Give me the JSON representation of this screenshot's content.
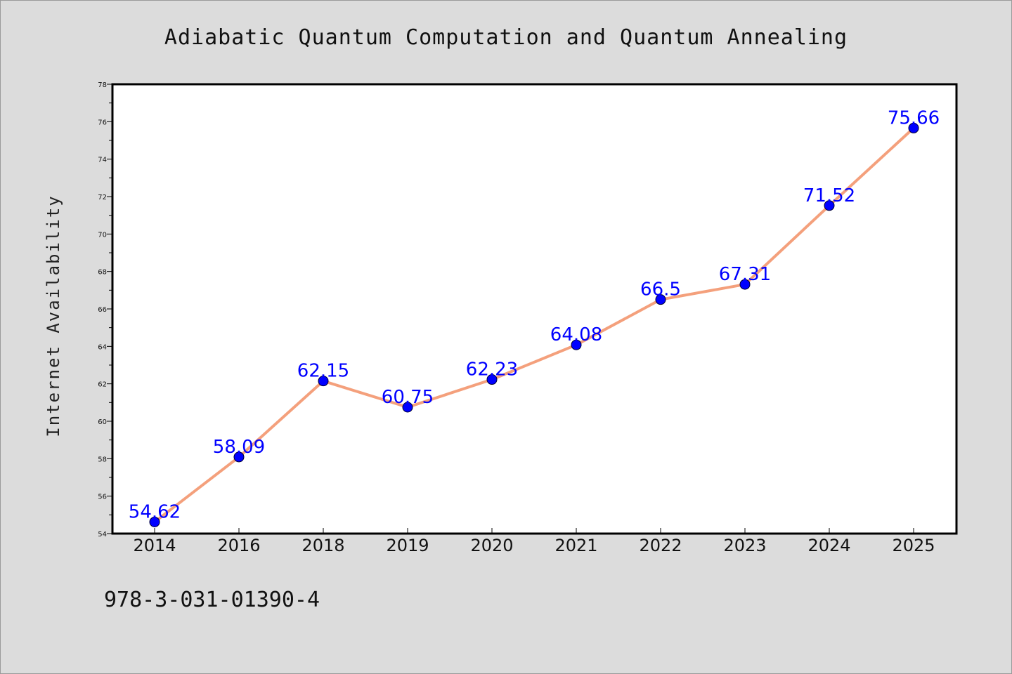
{
  "chart_data": {
    "type": "line",
    "title": "Adiabatic Quantum Computation and Quantum Annealing",
    "xlabel": "",
    "ylabel": "Internet Availability",
    "categories": [
      "2014",
      "2016",
      "2018",
      "2019",
      "2020",
      "2021",
      "2022",
      "2023",
      "2024",
      "2025"
    ],
    "series": [
      {
        "values": [
          54.62,
          58.09,
          62.15,
          60.75,
          62.23,
          64.08,
          66.5,
          67.31,
          71.52,
          75.66
        ],
        "labels": [
          "54.62",
          "58.09",
          "62.15",
          "60.75",
          "62.23",
          "64.08",
          "66.5",
          "67.31",
          "71.52",
          "75.66"
        ],
        "line_color": "#f4a07c",
        "marker_color": "#0000ff"
      }
    ],
    "ylim": [
      54,
      78
    ],
    "yticks": [
      "54",
      "56",
      "58",
      "60",
      "62",
      "64",
      "66",
      "68",
      "70",
      "72",
      "74",
      "76",
      "78"
    ],
    "grid": false,
    "legend": "none",
    "plot_background": "#ffffff",
    "figure_background": "#dcdcdc"
  },
  "footer": {
    "isbn": "978-3-031-01390-4"
  }
}
